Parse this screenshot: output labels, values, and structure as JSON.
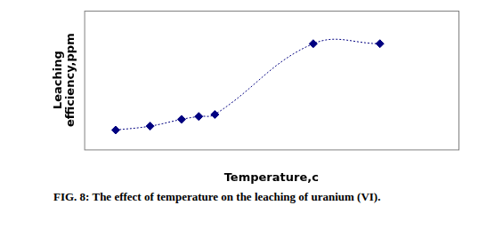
{
  "chart_data": {
    "type": "line",
    "caption": "FIG. 8: The effect of temperature on the leaching of uranium (VI).",
    "x_label": "Temperature,c",
    "y_label": [
      "Leaching",
      "efficiency,ppm"
    ],
    "x": [
      8.4,
      17.6,
      26.0,
      30.6,
      34.9,
      61.2,
      79.0
    ],
    "values": [
      14.0,
      16.8,
      21.7,
      23.8,
      25.2,
      76.2,
      76.2
    ],
    "color": "#000080",
    "marker": "diamond",
    "line_style": "dotted",
    "xlim": [
      0,
      100
    ],
    "ylim": [
      0,
      100
    ],
    "grid": false,
    "tick_labels": false
  }
}
